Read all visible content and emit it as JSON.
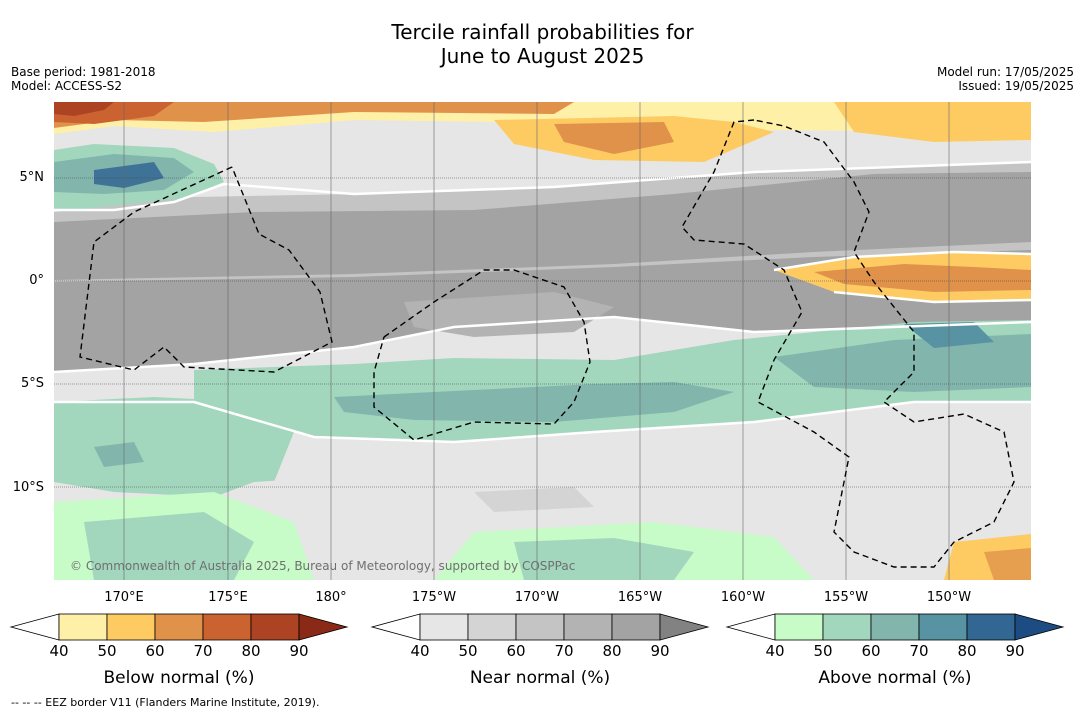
{
  "title_line1": "Tercile rainfall probabilities for",
  "title_line2": "June to August 2025",
  "meta": {
    "base_period": "Base period: 1981-2018",
    "model": "Model: ACCESS-S2",
    "model_run": "Model run: 17/05/2025",
    "issued": "Issued: 19/05/2025"
  },
  "map": {
    "copyright": "© Commonwealth of Australia 2025, Bureau of Meteorology, supported by COSPPac",
    "lat_labels": [
      "5°N",
      "0°",
      "5°S",
      "10°S"
    ],
    "lon_labels": [
      "170°E",
      "175°E",
      "180°",
      "175°W",
      "170°W",
      "165°W",
      "160°W",
      "155°W",
      "150°W"
    ]
  },
  "colorbars": [
    {
      "title": "Below normal (%)",
      "ticks": [
        "40",
        "50",
        "60",
        "70",
        "80",
        "90"
      ],
      "colors": [
        "#fff0a8",
        "#fecb63",
        "#e0924a",
        "#cb6331",
        "#ac4423"
      ],
      "over": "#8a2a16"
    },
    {
      "title": "Near normal (%)",
      "ticks": [
        "40",
        "50",
        "60",
        "70",
        "80",
        "90"
      ],
      "colors": [
        "#e6e6e6",
        "#d4d4d4",
        "#c4c4c4",
        "#b3b3b3",
        "#a3a3a3"
      ],
      "over": "#828282"
    },
    {
      "title": "Above normal (%)",
      "ticks": [
        "40",
        "50",
        "60",
        "70",
        "80",
        "90"
      ],
      "colors": [
        "#c7fbc7",
        "#a2d7be",
        "#82b6ad",
        "#5893a3",
        "#336793"
      ],
      "over": "#1d4c83"
    }
  ],
  "footer": "--  --  -- EEZ border V11 (Flanders Marine Institute, 2019)."
}
